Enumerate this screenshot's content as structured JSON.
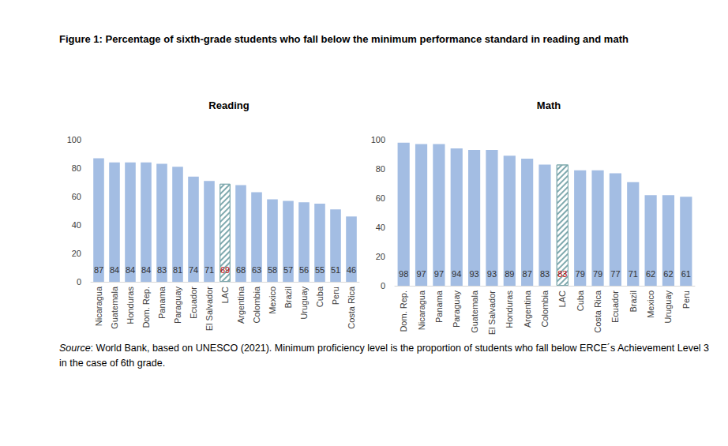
{
  "title": "Figure 1: Percentage of sixth-grade students who fall below the minimum performance standard in reading and math",
  "source_label": "Source",
  "source_text": ": World Bank, based on UNESCO (2021). Minimum proficiency level is the proportion of students who fall below ERCE´s Achievement Level 3 in the case of 6th grade.",
  "chart_data": [
    {
      "type": "bar",
      "title": "Reading",
      "categories": [
        "Nicaragua",
        "Guatemala",
        "Honduras",
        "Dom. Rep.",
        "Panama",
        "Paraguay",
        "Ecuador",
        "El Salvador",
        "LAC",
        "Argentina",
        "Colombia",
        "Mexico",
        "Brazil",
        "Uruguay",
        "Cuba",
        "Peru",
        "Costa Rica"
      ],
      "values": [
        87,
        84,
        84,
        84,
        83,
        81,
        74,
        71,
        69,
        68,
        63,
        58,
        57,
        56,
        55,
        51,
        46
      ],
      "color": "#a3bde3",
      "colors": [
        "#a3bde3",
        "#a3bde3",
        "#a3bde3",
        "#a3bde3",
        "#a3bde3",
        "#a3bde3",
        "#a3bde3",
        "#a3bde3",
        "#7fa9ae",
        "#a3bde3",
        "#a3bde3",
        "#a3bde3",
        "#a3bde3",
        "#a3bde3",
        "#a3bde3",
        "#a3bde3",
        "#a3bde3"
      ],
      "ylim": [
        0,
        100
      ],
      "yticks": [
        0,
        20,
        40,
        60,
        80,
        100
      ],
      "grid": false,
      "data_labels": true
    },
    {
      "type": "bar",
      "title": "Math",
      "categories": [
        "Dom. Rep.",
        "Nicaragua",
        "Panama",
        "Paraguay",
        "Guatemala",
        "El Salvador",
        "Honduras",
        "Argentina",
        "Colombia",
        "LAC",
        "Cuba",
        "Costa Rica",
        "Ecuador",
        "Brazil",
        "Mexico",
        "Uruguay",
        "Peru"
      ],
      "values": [
        98,
        97,
        97,
        94,
        93,
        93,
        89,
        87,
        83,
        83,
        79,
        79,
        77,
        71,
        62,
        62,
        61
      ],
      "color": "#a3bde3",
      "colors": [
        "#a3bde3",
        "#a3bde3",
        "#a3bde3",
        "#a3bde3",
        "#a3bde3",
        "#a3bde3",
        "#a3bde3",
        "#a3bde3",
        "#a3bde3",
        "#7fa9ae",
        "#a3bde3",
        "#a3bde3",
        "#a3bde3",
        "#a3bde3",
        "#a3bde3",
        "#a3bde3",
        "#a3bde3"
      ],
      "ylim": [
        0,
        100
      ],
      "yticks": [
        0,
        20,
        40,
        60,
        80,
        100
      ],
      "grid": false,
      "data_labels": true
    }
  ]
}
